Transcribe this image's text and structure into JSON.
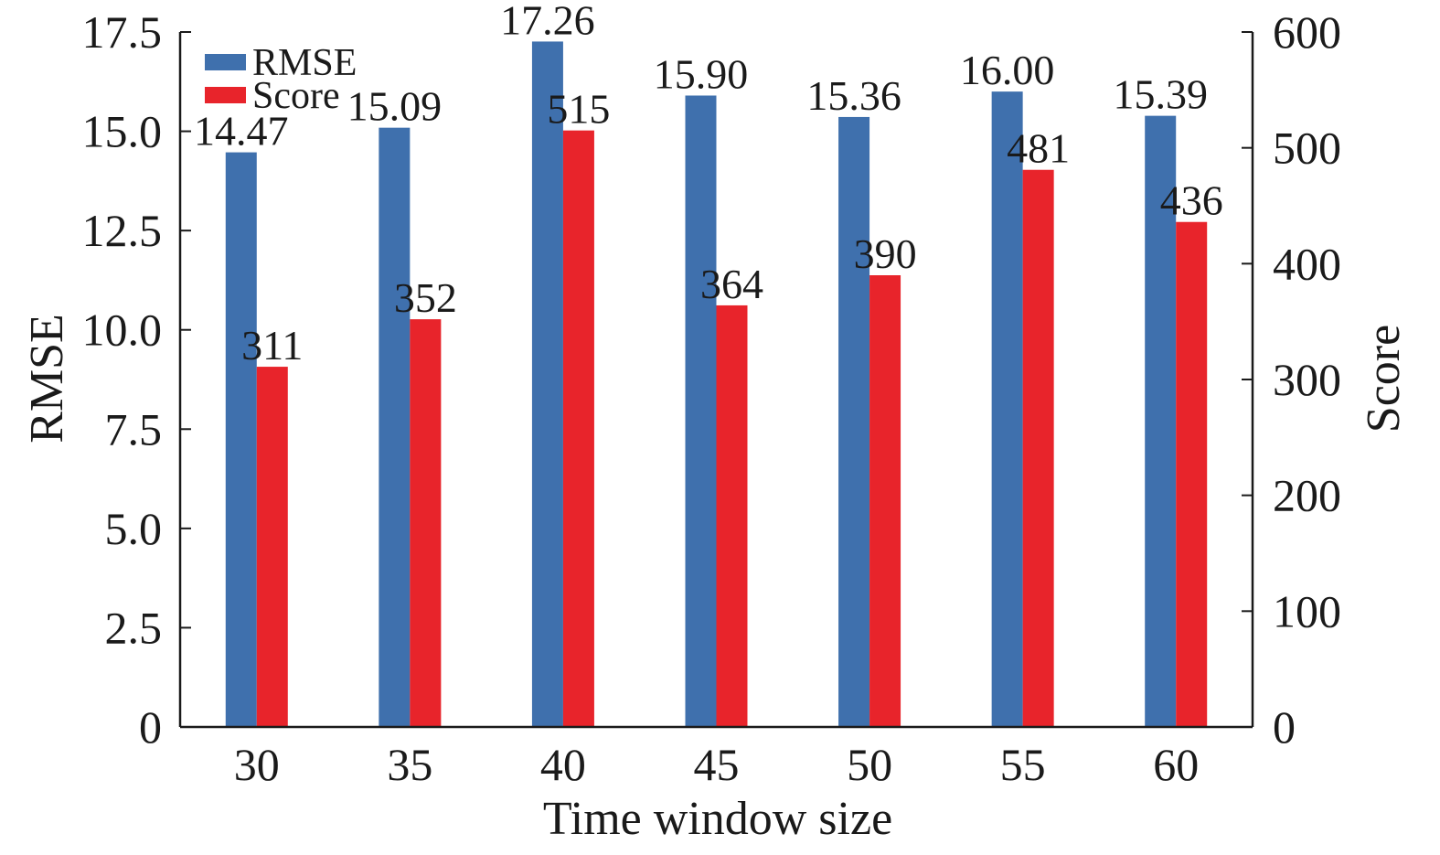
{
  "chart_data": {
    "type": "bar",
    "xlabel": "Time window size",
    "ylabel_left": "RMSE",
    "ylabel_right": "Score",
    "categories": [
      "30",
      "35",
      "40",
      "45",
      "50",
      "55",
      "60"
    ],
    "series": [
      {
        "name": "RMSE",
        "axis": "left",
        "color": "#3f70ad",
        "values": [
          14.47,
          15.09,
          17.26,
          15.9,
          15.36,
          16.0,
          15.39
        ],
        "labels": [
          "14.47",
          "15.09",
          "17.26",
          "15.90",
          "15.36",
          "16.00",
          "15.39"
        ]
      },
      {
        "name": "Score",
        "axis": "right",
        "color": "#e8242b",
        "values": [
          311,
          352,
          515,
          364,
          390,
          481,
          436
        ],
        "labels": [
          "311",
          "352",
          "515",
          "364",
          "390",
          "481",
          "436"
        ]
      }
    ],
    "ylim_left": [
      0,
      17.5
    ],
    "yticks_left": [
      "0",
      "2.5",
      "5.0",
      "7.5",
      "10.0",
      "12.5",
      "15.0",
      "17.5"
    ],
    "ylim_right": [
      0,
      600
    ],
    "yticks_right": [
      "0",
      "100",
      "200",
      "300",
      "400",
      "500",
      "600"
    ],
    "legend_position": "top-left",
    "grid": false
  }
}
